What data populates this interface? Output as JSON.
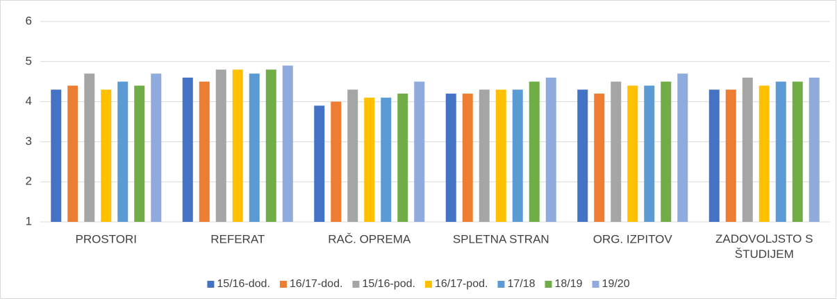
{
  "chart_data": {
    "type": "bar",
    "categories": [
      "PROSTORI",
      "REFERAT",
      "RAČ. OPREMA",
      "SPLETNA STRAN",
      "ORG. IZPITOV",
      "ZADOVOLJSTO S ŠTUDIJEM"
    ],
    "series": [
      {
        "name": "15/16-dod.",
        "color": "#4472c4",
        "values": [
          4.3,
          4.6,
          3.9,
          4.2,
          4.3,
          4.3
        ]
      },
      {
        "name": "16/17-dod.",
        "color": "#ed7d31",
        "values": [
          4.4,
          4.5,
          4.0,
          4.2,
          4.2,
          4.3
        ]
      },
      {
        "name": "15/16-pod.",
        "color": "#a5a5a5",
        "values": [
          4.7,
          4.8,
          4.3,
          4.3,
          4.5,
          4.6
        ]
      },
      {
        "name": "16/17-pod.",
        "color": "#ffc000",
        "values": [
          4.3,
          4.8,
          4.1,
          4.3,
          4.4,
          4.4
        ]
      },
      {
        "name": "17/18",
        "color": "#5b9bd5",
        "values": [
          4.5,
          4.7,
          4.1,
          4.3,
          4.4,
          4.5
        ]
      },
      {
        "name": "18/19",
        "color": "#70ad47",
        "values": [
          4.4,
          4.8,
          4.2,
          4.5,
          4.5,
          4.5
        ]
      },
      {
        "name": "19/20",
        "color": "#8faadc",
        "values": [
          4.7,
          4.9,
          4.5,
          4.6,
          4.7,
          4.6
        ]
      }
    ],
    "ylim": [
      1,
      6
    ],
    "yticks": [
      1,
      2,
      3,
      4,
      5,
      6
    ],
    "grid": true,
    "legend": "bottom"
  }
}
